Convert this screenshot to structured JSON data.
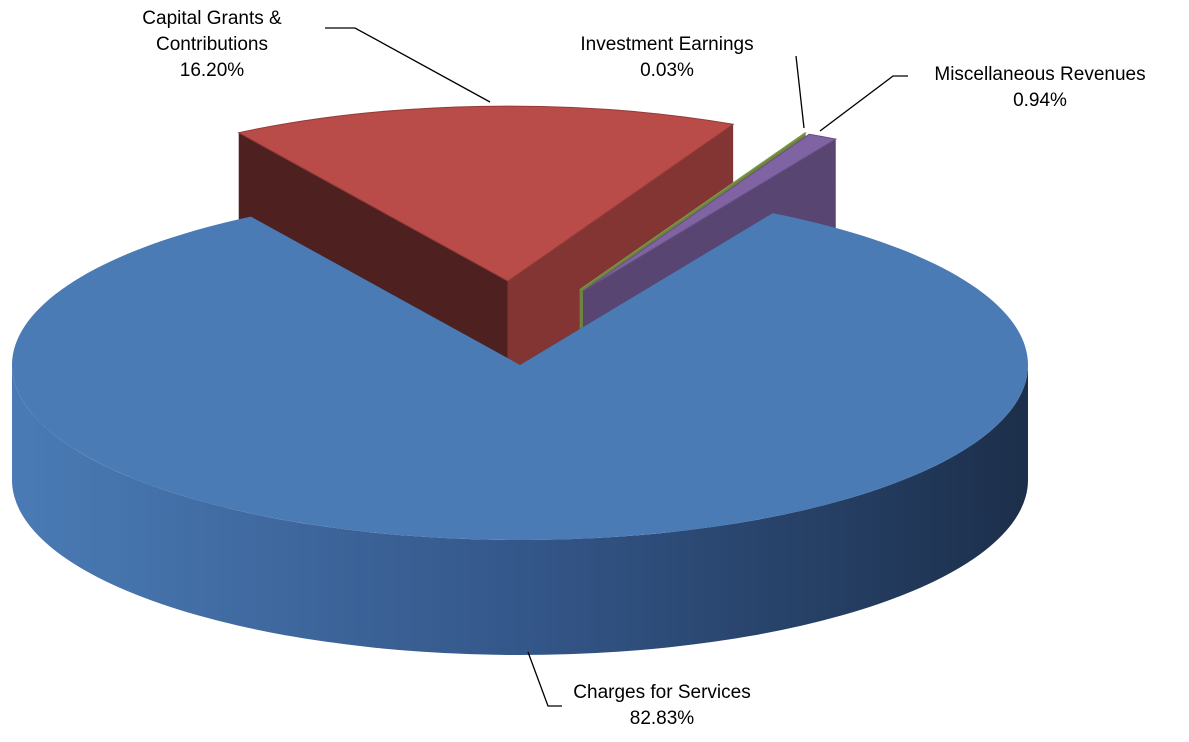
{
  "chart_data": {
    "type": "pie",
    "categories": [
      "Capital Grants & Contributions",
      "Investment Earnings",
      "Miscellaneous Revenues",
      "Charges for Services"
    ],
    "values": [
      16.2,
      0.03,
      0.94,
      82.83
    ],
    "value_labels": [
      "16.20%",
      "0.03%",
      "0.94%",
      "82.83%"
    ],
    "colors": [
      "#b94b49",
      "#9bbb59",
      "#7f63a2",
      "#4a7bb5"
    ]
  }
}
